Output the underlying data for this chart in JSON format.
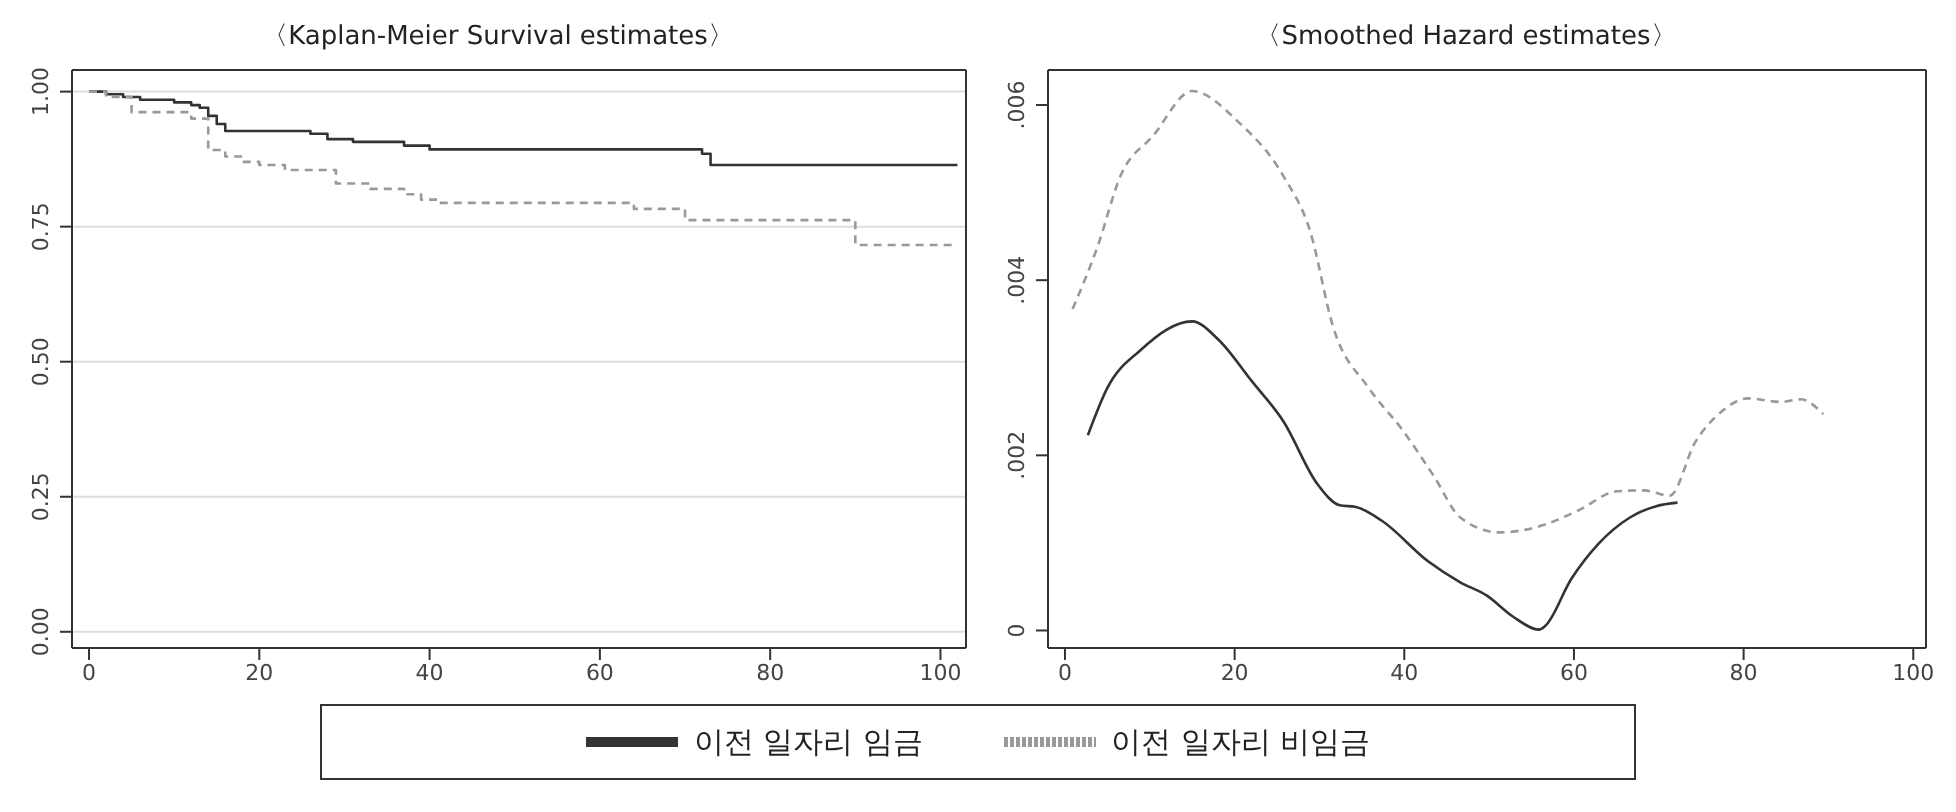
{
  "chart_data": [
    {
      "type": "step",
      "title": "〈Kaplan-Meier Survival estimates〉",
      "xlim": [
        -2,
        103
      ],
      "xticks": [
        0,
        20,
        40,
        60,
        80,
        100
      ],
      "ylim": [
        -0.03,
        1.04
      ],
      "yticks": [
        {
          "value": 0,
          "label": "0.00"
        },
        {
          "value": 0.25,
          "label": "0.25"
        },
        {
          "value": 0.5,
          "label": "0.50"
        },
        {
          "value": 0.75,
          "label": "0.75"
        },
        {
          "value": 1,
          "label": "1.00"
        }
      ],
      "grid": "y",
      "legend": "bottom",
      "series": [
        {
          "name": "이전 일자리 임금",
          "color": "#333333",
          "line_style": "solid",
          "x": [
            0,
            2,
            4,
            6,
            10,
            12,
            13,
            14,
            15,
            16,
            26,
            28,
            31,
            37,
            40,
            72,
            73,
            102
          ],
          "values": [
            1.0,
            0.995,
            0.99,
            0.985,
            0.98,
            0.975,
            0.97,
            0.955,
            0.94,
            0.927,
            0.922,
            0.912,
            0.907,
            0.9,
            0.893,
            0.885,
            0.864,
            0.864
          ]
        },
        {
          "name": "이전 일자리 비임금",
          "color": "#999999",
          "line_style": "dashed",
          "x": [
            0,
            2,
            5,
            12,
            14,
            16,
            18,
            20,
            23,
            29,
            33,
            37,
            39,
            41,
            64,
            70,
            90,
            102
          ],
          "values": [
            1.0,
            0.99,
            0.962,
            0.95,
            0.892,
            0.88,
            0.87,
            0.864,
            0.855,
            0.83,
            0.82,
            0.81,
            0.8,
            0.794,
            0.783,
            0.762,
            0.716,
            0.716
          ]
        }
      ]
    },
    {
      "type": "line",
      "title": "〈Smoothed Hazard estimates〉",
      "xlim": [
        -2,
        101.5
      ],
      "xticks": [
        0,
        20,
        40,
        60,
        80,
        100
      ],
      "ylim": [
        -0.0002,
        0.0064
      ],
      "yticks": [
        0,
        {
          "value": 0.002,
          "label": ".002"
        },
        {
          "value": 0.004,
          "label": ".004"
        },
        {
          "value": 0.006,
          "label": ".006"
        }
      ],
      "series": [
        {
          "color": "#333333",
          "line_style": "solid",
          "x": [
            2.7,
            5,
            8.9,
            15,
            18.1,
            22,
            25.8,
            29.7,
            32.4,
            34.3,
            37.4,
            42.8,
            46.6,
            49.7,
            52.8,
            55.9,
            56.6,
            59.7,
            62.8,
            66.6,
            69.7,
            72.2
          ],
          "values": [
            0.00223,
            0.00277,
            0.0032,
            0.00353,
            0.00332,
            0.00285,
            0.00238,
            0.00168,
            0.00143,
            0.00141,
            0.00125,
            0.00079,
            0.00055,
            0.0004,
            0.00016,
            1e-05,
            5e-05,
            0.00059,
            0.00098,
            0.00129,
            0.00142,
            0.00146
          ]
        },
        {
          "color": "#999999",
          "line_style": "dashed",
          "x": [
            0.9,
            3.9,
            6.5,
            10.4,
            15,
            20.4,
            25.8,
            28.9,
            31.6,
            35.8,
            39.7,
            43.5,
            46.6,
            51.2,
            56.6,
            60.5,
            65.1,
            68.2,
            71.3,
            74.3,
            77.4,
            80.5,
            84.4,
            86.7,
            89.4
          ],
          "values": [
            0.00367,
            0.0044,
            0.00518,
            0.00565,
            0.00616,
            0.00581,
            0.00518,
            0.00456,
            0.00347,
            0.00277,
            0.0023,
            0.00176,
            0.00129,
            0.00112,
            0.00121,
            0.00137,
            0.00159,
            0.0016,
            0.00154,
            0.00215,
            0.0025,
            0.00265,
            0.00261,
            0.00264,
            0.00247
          ]
        }
      ]
    }
  ]
}
